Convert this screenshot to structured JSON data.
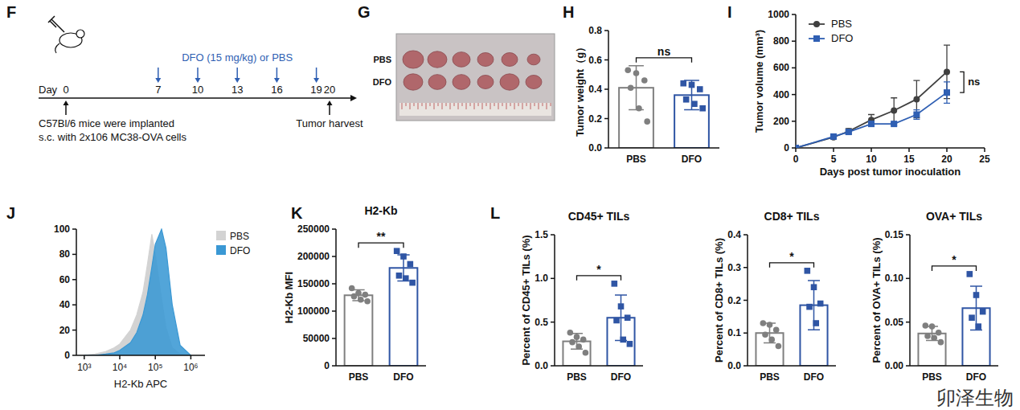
{
  "panel_letters": [
    "F",
    "G",
    "H",
    "I",
    "J",
    "K",
    "L"
  ],
  "timeline": {
    "day_label": "Day",
    "days": [
      0,
      7,
      10,
      13,
      16,
      19,
      20
    ],
    "treatment_label": "DFO (15 mg/kg) or PBS",
    "treatment_days": [
      7,
      10,
      13,
      16,
      19
    ],
    "start_label": [
      "C57Bl/6 mice were implanted",
      "s.c. with 2x106 MC38-OVA cells"
    ],
    "end_label": "Tumor harvest"
  },
  "photo": {
    "labels": [
      "PBS",
      "DFO"
    ]
  },
  "chart_data": [
    {
      "type": "bar",
      "ylabel": "Tumor weight（g）",
      "categories": [
        "PBS",
        "DFO"
      ],
      "values": [
        0.41,
        0.36
      ],
      "errors": [
        0.15,
        0.1
      ],
      "points": [
        [
          0.53,
          0.51,
          0.46,
          0.41,
          0.27,
          0.18
        ],
        [
          0.44,
          0.43,
          0.4,
          0.33,
          0.3,
          0.27
        ]
      ],
      "colors": [
        "#7f7f7f",
        "#2f55a4"
      ],
      "ylim": [
        0,
        0.8
      ],
      "yticks": [
        {
          "value": 0,
          "label": "0.0"
        },
        {
          "value": 0.2,
          "label": "0.2"
        },
        {
          "value": 0.4,
          "label": "0.4"
        },
        {
          "value": 0.6,
          "label": "0.6"
        },
        {
          "value": 0.8,
          "label": "0.8"
        }
      ],
      "annotation": "ns"
    },
    {
      "type": "line",
      "xlabel": "Days post tumor inoculation",
      "ylabel": "Tumor volume (mm³)",
      "x": [
        0,
        5,
        7,
        10,
        13,
        16,
        20
      ],
      "series": [
        {
          "name": "PBS",
          "color": "#404040",
          "marker": "circle",
          "values": [
            0,
            80,
            125,
            210,
            280,
            365,
            570
          ],
          "errors": [
            0,
            10,
            20,
            40,
            95,
            140,
            200
          ]
        },
        {
          "name": "DFO",
          "color": "#2f5fb3",
          "marker": "square",
          "values": [
            0,
            85,
            120,
            180,
            180,
            250,
            415
          ],
          "errors": [
            0,
            10,
            15,
            20,
            10,
            35,
            80
          ]
        }
      ],
      "xlim": [
        0,
        25
      ],
      "xticks": [
        0,
        5,
        10,
        15,
        20,
        25
      ],
      "ylim": [
        0,
        1000
      ],
      "yticks": [
        0,
        200,
        400,
        600,
        800,
        1000
      ],
      "legend": "top-left",
      "annotation": "ns"
    },
    {
      "type": "area",
      "xlabel": "H2-Kb APC",
      "log": "x",
      "x": [
        1000,
        2000,
        4000,
        7000,
        10000,
        20000,
        30000,
        45000,
        60000,
        80000,
        100000,
        150000,
        200000,
        300000,
        500000,
        1000000
      ],
      "series": [
        {
          "name": "PBS",
          "color": "#d3d3d3",
          "values": [
            0,
            1,
            3,
            6,
            9,
            20,
            32,
            50,
            72,
            96,
            80,
            45,
            22,
            6,
            1,
            0
          ]
        },
        {
          "name": "DFO",
          "color": "#3a98d4",
          "values": [
            0,
            0,
            1,
            2,
            4,
            10,
            18,
            32,
            48,
            70,
            88,
            100,
            85,
            40,
            8,
            0
          ]
        }
      ],
      "xlim": [
        600,
        2500000
      ],
      "xticks": [
        {
          "value": 1000,
          "label": "10³"
        },
        {
          "value": 10000,
          "label": "10⁴"
        },
        {
          "value": 100000,
          "label": "10⁵"
        },
        {
          "value": 1000000,
          "label": "10⁶"
        }
      ],
      "ylim": [
        0,
        100
      ],
      "yticks": [
        0,
        20,
        40,
        60,
        80,
        100
      ],
      "legend": "top-right"
    },
    {
      "type": "bar",
      "title": "H2-Kb",
      "ylabel": "H2-Kb MFI",
      "categories": [
        "PBS",
        "DFO"
      ],
      "values": [
        129000,
        179000
      ],
      "errors": [
        10000,
        24000
      ],
      "points": [
        [
          142000,
          133000,
          130000,
          127000,
          121000,
          118000
        ],
        [
          210000,
          200000,
          186000,
          165000,
          160000,
          152000
        ]
      ],
      "colors": [
        "#7f7f7f",
        "#2f55a4"
      ],
      "ylim": [
        0,
        250000
      ],
      "yticks": [
        0,
        50000,
        100000,
        150000,
        200000,
        250000
      ],
      "annotation": "**"
    },
    {
      "type": "bar",
      "title": "CD45+ TILs",
      "ylabel": "Percent of CD45+ TILs (%)",
      "categories": [
        "PBS",
        "DFO"
      ],
      "values": [
        0.28,
        0.55
      ],
      "errors": [
        0.09,
        0.26
      ],
      "points": [
        [
          0.38,
          0.33,
          0.3,
          0.27,
          0.22,
          0.15
        ],
        [
          0.94,
          0.68,
          0.55,
          0.52,
          0.3,
          0.25
        ]
      ],
      "colors": [
        "#7f7f7f",
        "#2f55a4"
      ],
      "ylim": [
        0,
        1.5
      ],
      "yticks": [
        {
          "value": 0,
          "label": "0.0"
        },
        {
          "value": 0.5,
          "label": "0.5"
        },
        {
          "value": 1,
          "label": "1.0"
        },
        {
          "value": 1.5,
          "label": "1.5"
        }
      ],
      "annotation": "*"
    },
    {
      "type": "bar",
      "title": "CD8+ TILs",
      "ylabel": "Percent of CD8+ TILs (%)",
      "categories": [
        "PBS",
        "DFO"
      ],
      "values": [
        0.1,
        0.185
      ],
      "errors": [
        0.03,
        0.075
      ],
      "points": [
        [
          0.13,
          0.125,
          0.11,
          0.095,
          0.08,
          0.06
        ],
        [
          0.29,
          0.24,
          0.19,
          0.18,
          0.13
        ]
      ],
      "colors": [
        "#7f7f7f",
        "#2f55a4"
      ],
      "ylim": [
        0,
        0.4
      ],
      "yticks": [
        {
          "value": 0,
          "label": "0.0"
        },
        {
          "value": 0.1,
          "label": "0.1"
        },
        {
          "value": 0.2,
          "label": "0.2"
        },
        {
          "value": 0.3,
          "label": "0.3"
        },
        {
          "value": 0.4,
          "label": "0.4"
        }
      ],
      "annotation": "*"
    },
    {
      "type": "bar",
      "title": "OVA+ TILs",
      "ylabel": "Percent of OVA+ TILs (%)",
      "categories": [
        "PBS",
        "DFO"
      ],
      "values": [
        0.037,
        0.066
      ],
      "errors": [
        0.008,
        0.025
      ],
      "points": [
        [
          0.046,
          0.045,
          0.038,
          0.034,
          0.032,
          0.027
        ],
        [
          0.105,
          0.081,
          0.062,
          0.055,
          0.045
        ]
      ],
      "colors": [
        "#7f7f7f",
        "#2f55a4"
      ],
      "ylim": [
        0,
        0.15
      ],
      "yticks": [
        {
          "value": 0,
          "label": "0.00"
        },
        {
          "value": 0.05,
          "label": "0.05"
        },
        {
          "value": 0.1,
          "label": "0.10"
        },
        {
          "value": 0.15,
          "label": "0.15"
        }
      ],
      "annotation": "*"
    }
  ],
  "watermark": "卯泽生物"
}
